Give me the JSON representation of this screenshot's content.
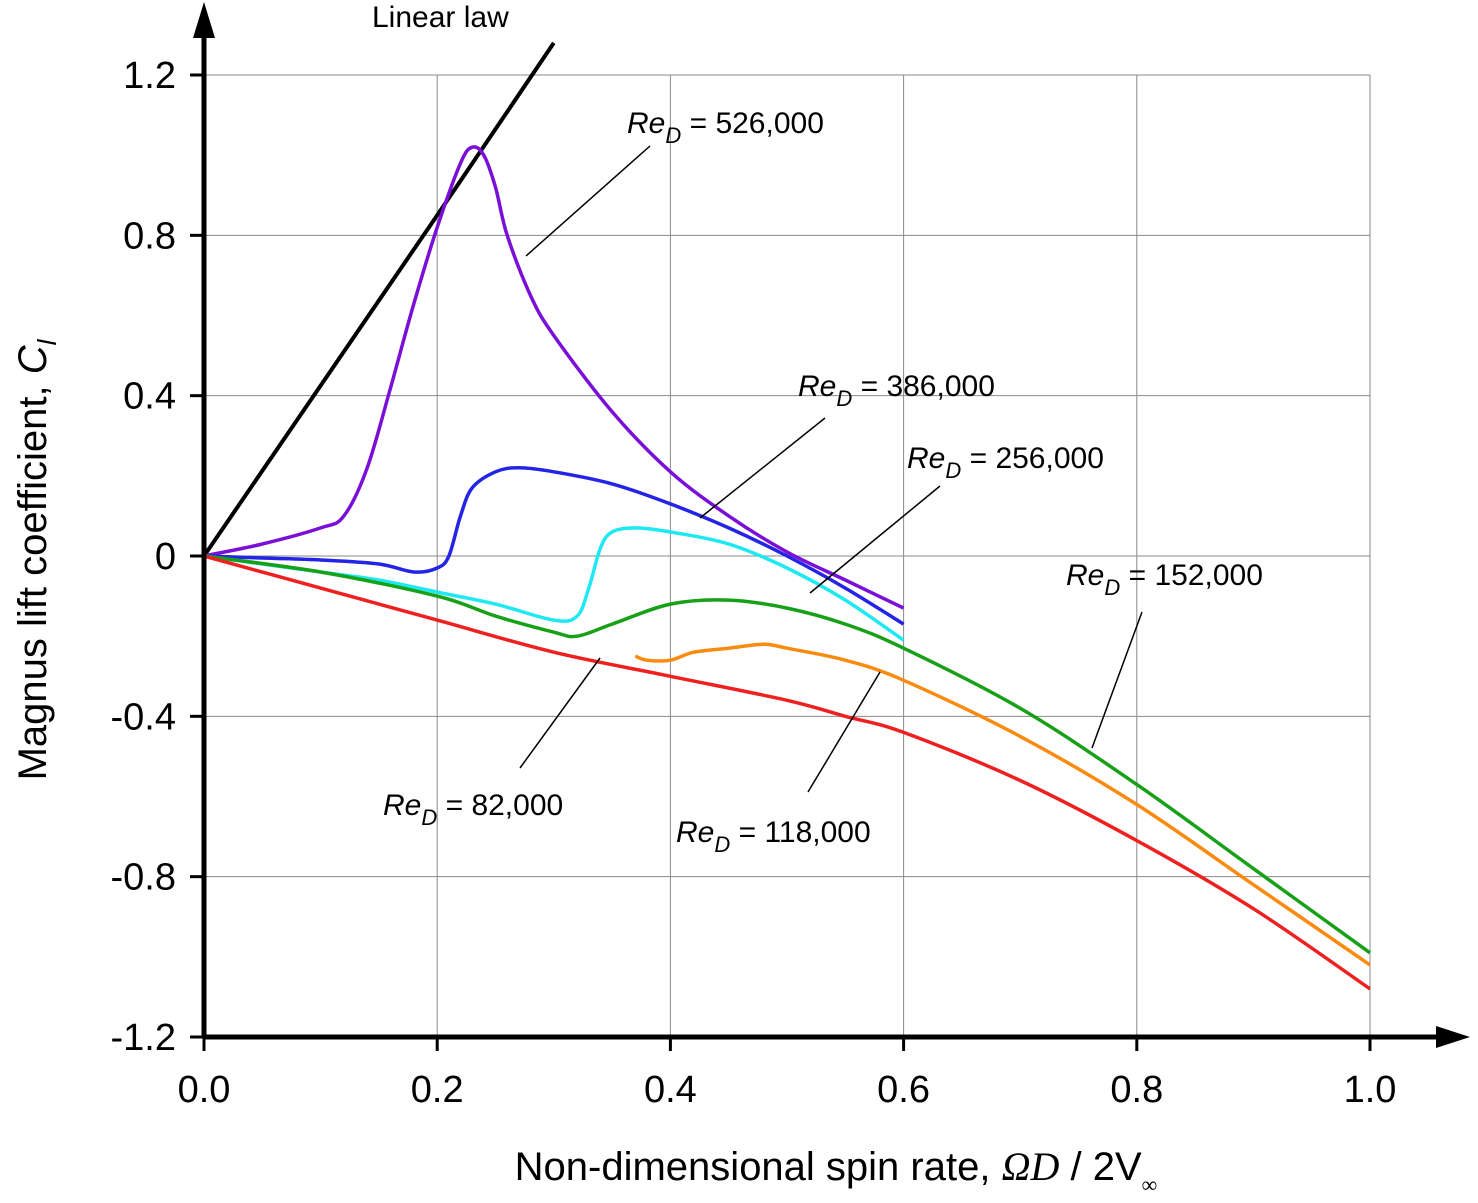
{
  "chart_data": {
    "type": "line",
    "title": "",
    "xlabel_text": "Non-dimensional spin rate, ",
    "xlabel_math": [
      "ΩD",
      " / 2V",
      "∞"
    ],
    "ylabel_text": "Magnus lift coefficient, ",
    "ylabel_math": [
      "C",
      "l"
    ],
    "xlim": [
      0.0,
      1.0
    ],
    "ylim": [
      -1.2,
      1.2
    ],
    "xticks": [
      0.0,
      0.2,
      0.4,
      0.6,
      0.8,
      1.0
    ],
    "xtick_labels": [
      "0.0",
      "0.2",
      "0.4",
      "0.6",
      "0.8",
      "1.0"
    ],
    "yticks": [
      1.2,
      0.8,
      0.4,
      0,
      -0.4,
      -0.8,
      -1.2
    ],
    "ytick_labels": [
      "1.2",
      "0.8",
      "0.4",
      "0",
      "-0.4",
      "-0.8",
      "-1.2"
    ],
    "grid": true,
    "series": [
      {
        "name": "Linear law",
        "color": "#000000",
        "x": [
          0.0,
          0.2,
          0.3
        ],
        "y": [
          0.0,
          0.85,
          1.28
        ]
      },
      {
        "name": "Re_D = 526,000",
        "color": "#7a10d8",
        "x": [
          0.0,
          0.05,
          0.1,
          0.12,
          0.14,
          0.16,
          0.18,
          0.2,
          0.22,
          0.23,
          0.24,
          0.25,
          0.26,
          0.28,
          0.3,
          0.35,
          0.4,
          0.45,
          0.5,
          0.55,
          0.6
        ],
        "y": [
          0.0,
          0.03,
          0.07,
          0.1,
          0.22,
          0.42,
          0.63,
          0.82,
          0.98,
          1.02,
          1.0,
          0.92,
          0.8,
          0.65,
          0.55,
          0.36,
          0.21,
          0.1,
          0.01,
          -0.06,
          -0.13
        ]
      },
      {
        "name": "Re_D = 386,000",
        "color": "#2424e6",
        "x": [
          0.0,
          0.05,
          0.1,
          0.15,
          0.18,
          0.2,
          0.21,
          0.22,
          0.23,
          0.25,
          0.27,
          0.3,
          0.35,
          0.4,
          0.45,
          0.5,
          0.55,
          0.6
        ],
        "y": [
          0.0,
          -0.005,
          -0.01,
          -0.02,
          -0.04,
          -0.03,
          0.0,
          0.1,
          0.17,
          0.21,
          0.22,
          0.21,
          0.18,
          0.13,
          0.07,
          0.0,
          -0.08,
          -0.17
        ]
      },
      {
        "name": "Re_D = 256,000",
        "color": "#1ee8f2",
        "x": [
          0.0,
          0.05,
          0.1,
          0.15,
          0.2,
          0.25,
          0.3,
          0.32,
          0.33,
          0.34,
          0.35,
          0.37,
          0.4,
          0.45,
          0.5,
          0.55,
          0.6
        ],
        "y": [
          0.0,
          -0.02,
          -0.04,
          -0.06,
          -0.09,
          -0.12,
          -0.16,
          -0.15,
          -0.08,
          0.02,
          0.06,
          0.07,
          0.06,
          0.03,
          -0.03,
          -0.11,
          -0.21
        ]
      },
      {
        "name": "Re_D = 152,000",
        "color": "#18a018",
        "x": [
          0.0,
          0.1,
          0.2,
          0.25,
          0.3,
          0.32,
          0.35,
          0.4,
          0.45,
          0.5,
          0.55,
          0.6,
          0.7,
          0.8,
          0.9,
          1.0
        ],
        "y": [
          0.0,
          -0.04,
          -0.1,
          -0.15,
          -0.19,
          -0.2,
          -0.17,
          -0.12,
          -0.11,
          -0.13,
          -0.17,
          -0.23,
          -0.38,
          -0.57,
          -0.78,
          -0.99
        ]
      },
      {
        "name": "Re_D = 118,000",
        "color": "#f88b10",
        "x": [
          0.37,
          0.38,
          0.4,
          0.42,
          0.45,
          0.48,
          0.5,
          0.55,
          0.6,
          0.7,
          0.8,
          0.9,
          1.0
        ],
        "y": [
          -0.25,
          -0.26,
          -0.26,
          -0.24,
          -0.23,
          -0.22,
          -0.23,
          -0.26,
          -0.31,
          -0.45,
          -0.62,
          -0.82,
          -1.02
        ]
      },
      {
        "name": "Re_D = 82,000",
        "color": "#ee2020",
        "x": [
          0.0,
          0.1,
          0.2,
          0.3,
          0.4,
          0.5,
          0.55,
          0.6,
          0.7,
          0.8,
          0.9,
          1.0
        ],
        "y": [
          0.0,
          -0.08,
          -0.16,
          -0.24,
          -0.3,
          -0.36,
          -0.4,
          -0.44,
          -0.56,
          -0.71,
          -0.88,
          -1.08
        ]
      }
    ],
    "annotations": [
      {
        "text_main": "Linear law",
        "text_sub": "",
        "text_rest": "",
        "series": "Linear law"
      },
      {
        "text_main": "Re",
        "text_sub": "D",
        "text_rest": " = 526,000",
        "series": "Re_D = 526,000"
      },
      {
        "text_main": "Re",
        "text_sub": "D",
        "text_rest": " = 386,000",
        "series": "Re_D = 386,000"
      },
      {
        "text_main": "Re",
        "text_sub": "D",
        "text_rest": " = 256,000",
        "series": "Re_D = 256,000"
      },
      {
        "text_main": "Re",
        "text_sub": "D",
        "text_rest": " = 152,000",
        "series": "Re_D = 152,000"
      },
      {
        "text_main": "Re",
        "text_sub": "D",
        "text_rest": " = 82,000",
        "series": "Re_D = 82,000"
      },
      {
        "text_main": "Re",
        "text_sub": "D",
        "text_rest": " = 118,000",
        "series": "Re_D = 118,000"
      }
    ]
  }
}
